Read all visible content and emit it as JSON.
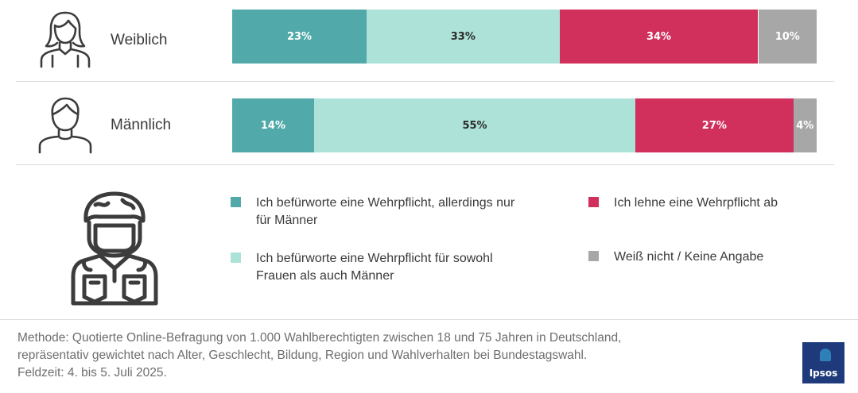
{
  "chart_data": {
    "type": "stacked-bar-horizontal",
    "categories": [
      "Weiblich",
      "Männlich"
    ],
    "series": [
      {
        "name": "Ich befürworte eine Wehrpflicht, allerdings nur für Männer",
        "color": "#52a9a9",
        "label_color": "#ffffff",
        "values": [
          23,
          14
        ]
      },
      {
        "name": "Ich befürworte eine Wehrpflicht für sowohl Frauen als auch Männer",
        "color": "#ace2d7",
        "label_color": "#2b2b2b",
        "values": [
          33,
          55
        ]
      },
      {
        "name": "Ich lehne eine Wehrpflicht ab",
        "color": "#d12f5c",
        "label_color": "#ffffff",
        "values": [
          34,
          27
        ]
      },
      {
        "name": "Weiß nicht / Keine Angabe",
        "color": "#a7a7a7",
        "label_color": "#ffffff",
        "values": [
          10,
          4
        ]
      }
    ],
    "value_labels": [
      [
        "23%",
        "33%",
        "34%",
        "10%"
      ],
      [
        "14%",
        "55%",
        "27%",
        "4%"
      ]
    ],
    "unit": "%"
  },
  "rows": [
    {
      "label": "Weiblich",
      "icon": "woman-icon"
    },
    {
      "label": "Männlich",
      "icon": "man-icon"
    }
  ],
  "legend": [
    {
      "line1": "Ich befürworte eine Wehrpflicht, allerdings nur",
      "line2": "für Männer",
      "color": "#52a9a9"
    },
    {
      "line1": "Ich befürworte eine Wehrpflicht für sowohl",
      "line2": "Frauen als auch Männer",
      "color": "#ace2d7"
    },
    {
      "line1": "Ich lehne eine Wehrpflicht ab",
      "line2": "",
      "color": "#d12f5c"
    },
    {
      "line1": "Weiß nicht / Keine Angabe",
      "line2": "",
      "color": "#a7a7a7"
    }
  ],
  "footnote": {
    "line1": "Methode: Quotierte Online-Befragung von 1.000 Wahlberechtigten zwischen 18 und 75 Jahren in Deutschland,",
    "line2": "repräsentativ gewichtet nach Alter, Geschlecht, Bildung, Region und Wahlverhalten bei Bundestagswahl.",
    "line3": "Feldzeit: 4. bis 5. Juli 2025."
  },
  "logo": {
    "text": "Ipsos",
    "color": "#1f3a7a"
  }
}
